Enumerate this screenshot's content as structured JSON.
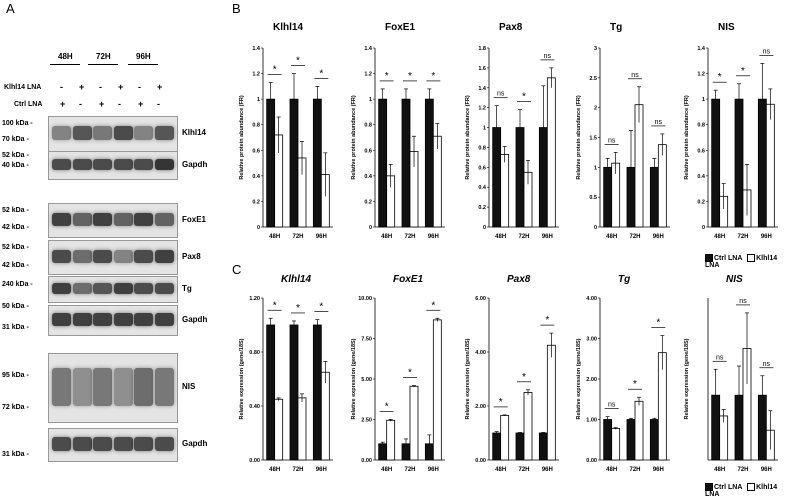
{
  "panel_letters": [
    "A",
    "B",
    "C"
  ],
  "westerns": {
    "timepoints": [
      "48H",
      "72H",
      "96H"
    ],
    "row_labels": [
      "Klhl14 LNA",
      "Ctrl LNA"
    ],
    "klhl14_lna_signs": [
      "-",
      "+",
      "-",
      "+",
      "-",
      "+"
    ],
    "ctrl_lna_signs": [
      "+",
      "-",
      "+",
      "-",
      "+",
      "-"
    ],
    "blots": [
      {
        "protein": "Klhl14",
        "markers": [
          "100 kDa -",
          "70 kDa -"
        ],
        "intensity": [
          0.55,
          0.75,
          0.6,
          0.8,
          0.55,
          0.75
        ]
      },
      {
        "protein": "Gapdh",
        "markers": [
          "52 kDa -",
          "40 kDa -"
        ],
        "intensity": [
          0.8,
          0.8,
          0.8,
          0.8,
          0.8,
          0.9
        ]
      },
      {
        "protein": "FoxE1",
        "markers": [
          "52 kDa -",
          "42 kDa -"
        ],
        "intensity": [
          0.85,
          0.7,
          0.85,
          0.7,
          0.85,
          0.7
        ]
      },
      {
        "protein": "Pax8",
        "markers": [
          "52 kDa -",
          "42 kDa -"
        ],
        "intensity": [
          0.8,
          0.65,
          0.8,
          0.55,
          0.8,
          0.85
        ]
      },
      {
        "protein": "Tg",
        "markers": [
          "240 kDa -"
        ],
        "intensity": [
          0.85,
          0.65,
          0.75,
          0.85,
          0.8,
          0.8
        ]
      },
      {
        "protein": "Gapdh",
        "markers": [
          "50 kDa -",
          "31 kDa -"
        ],
        "intensity": [
          0.85,
          0.85,
          0.85,
          0.85,
          0.85,
          0.85
        ]
      },
      {
        "protein": "NIS",
        "markers": [
          "95 kDa -",
          "72 kDa -"
        ],
        "intensity": [
          0.6,
          0.5,
          0.6,
          0.5,
          0.65,
          0.6
        ]
      },
      {
        "protein": "Gapdh",
        "markers": [
          "31 kDa -"
        ],
        "intensity": [
          0.8,
          0.8,
          0.8,
          0.8,
          0.8,
          0.8
        ]
      }
    ]
  },
  "legend": {
    "ctrl": "Ctrl LNA",
    "klhl14": "Klhl14 LNA"
  },
  "chart_data": [
    {
      "type": "bar",
      "panel": "B",
      "title": "Klhl14",
      "ylabel": "Relative protein abundance (FR)",
      "categories": [
        "48H",
        "72H",
        "96H"
      ],
      "ylim": [
        0,
        1.4
      ],
      "yticks": [
        "0",
        "0.2",
        "0.4",
        "0.6",
        "0.8",
        "1",
        "1.2",
        "1.4"
      ],
      "series": [
        {
          "name": "Ctrl LNA",
          "values": [
            1.0,
            1.0,
            1.0
          ],
          "errors": [
            0.13,
            0.2,
            0.1
          ]
        },
        {
          "name": "Klhl14 LNA",
          "values": [
            0.72,
            0.54,
            0.41
          ],
          "errors": [
            0.14,
            0.13,
            0.17
          ]
        }
      ],
      "annotations": [
        "*",
        "*",
        "*"
      ]
    },
    {
      "type": "bar",
      "panel": "B",
      "title": "FoxE1",
      "ylabel": "Relative protein abundance (FR)",
      "categories": [
        "48H",
        "72H",
        "96H"
      ],
      "ylim": [
        0,
        1.4
      ],
      "yticks": [
        "0",
        "0.2",
        "0.4",
        "0.6",
        "0.8",
        "1",
        "1.2",
        "1.4"
      ],
      "series": [
        {
          "name": "Ctrl LNA",
          "values": [
            1.0,
            1.0,
            1.0
          ],
          "errors": [
            0.08,
            0.08,
            0.08
          ]
        },
        {
          "name": "Klhl14 LNA",
          "values": [
            0.4,
            0.59,
            0.71
          ],
          "errors": [
            0.09,
            0.12,
            0.1
          ]
        }
      ],
      "annotations": [
        "*",
        "*",
        "*"
      ]
    },
    {
      "type": "bar",
      "panel": "B",
      "title": "Pax8",
      "ylabel": "Relative protein abundance (FR)",
      "categories": [
        "48H",
        "72H",
        "96H"
      ],
      "ylim": [
        0,
        1.8
      ],
      "yticks": [
        "0",
        "0.2",
        "0.4",
        "0.6",
        "0.8",
        "1",
        "1.2",
        "1.4",
        "1.6",
        "1.8"
      ],
      "series": [
        {
          "name": "Ctrl LNA",
          "values": [
            1.0,
            1.0,
            1.0
          ],
          "errors": [
            0.22,
            0.18,
            0.42
          ]
        },
        {
          "name": "Klhl14 LNA",
          "values": [
            0.73,
            0.55,
            1.5
          ],
          "errors": [
            0.08,
            0.12,
            0.1
          ]
        }
      ],
      "annotations": [
        "ns",
        "*",
        "ns"
      ]
    },
    {
      "type": "bar",
      "panel": "B",
      "title": "Tg",
      "ylabel": "Relative protein abundance (FR)",
      "categories": [
        "48H",
        "72H",
        "96H"
      ],
      "ylim": [
        0,
        3
      ],
      "yticks": [
        "0",
        "0.5",
        "1",
        "1.5",
        "2",
        "2.5",
        "3"
      ],
      "series": [
        {
          "name": "Ctrl LNA",
          "values": [
            1.0,
            1.0,
            1.0
          ],
          "errors": [
            0.15,
            0.62,
            0.15
          ]
        },
        {
          "name": "Klhl14 LNA",
          "values": [
            1.07,
            2.05,
            1.38
          ],
          "errors": [
            0.18,
            0.3,
            0.18
          ]
        }
      ],
      "annotations": [
        "ns",
        "ns",
        "ns"
      ]
    },
    {
      "type": "bar",
      "panel": "B",
      "title": "NIS",
      "ylabel": "Relative protein abundance (FR)",
      "categories": [
        "48H",
        "72H",
        "96H"
      ],
      "ylim": [
        0,
        1.4
      ],
      "yticks": [
        "0",
        "0.2",
        "0.4",
        "0.6",
        "0.8",
        "1",
        "1.2",
        "1.4"
      ],
      "series": [
        {
          "name": "Ctrl LNA",
          "values": [
            1.0,
            1.0,
            1.0
          ],
          "errors": [
            0.07,
            0.12,
            0.28
          ]
        },
        {
          "name": "Klhl14 LNA",
          "values": [
            0.24,
            0.29,
            0.96
          ],
          "errors": [
            0.1,
            0.2,
            0.12
          ]
        }
      ],
      "annotations": [
        "*",
        "*",
        "ns"
      ]
    },
    {
      "type": "bar",
      "panel": "C",
      "title": "Klhl14",
      "ylabel": "Relative expression (gene/18S)",
      "categories": [
        "48H",
        "72H",
        "96H"
      ],
      "ylim": [
        0,
        1.2
      ],
      "yticks": [
        "0.00",
        "0.40",
        "0.80",
        "1.20"
      ],
      "ytick_values": [
        0,
        0.4,
        0.8,
        1.2
      ],
      "series": [
        {
          "name": "Ctrl LNA",
          "values": [
            1.0,
            1.0,
            1.0
          ],
          "errors": [
            0.05,
            0.03,
            0.04
          ]
        },
        {
          "name": "Klhl14 LNA",
          "values": [
            0.45,
            0.46,
            0.65
          ],
          "errors": [
            0.01,
            0.03,
            0.08
          ]
        }
      ],
      "annotations": [
        "*",
        "*",
        "*"
      ]
    },
    {
      "type": "bar",
      "panel": "C",
      "title": "FoxE1",
      "ylabel": "Relative expression (gene/18S)",
      "categories": [
        "48H",
        "72H",
        "96H"
      ],
      "ylim": [
        0,
        10
      ],
      "yticks": [
        "0.00",
        "2.50",
        "5.00",
        "7.50",
        "10.00"
      ],
      "ytick_values": [
        0,
        2.5,
        5,
        7.5,
        10
      ],
      "series": [
        {
          "name": "Ctrl LNA",
          "values": [
            1.0,
            1.0,
            1.0
          ],
          "errors": [
            0.1,
            0.3,
            0.55
          ]
        },
        {
          "name": "Klhl14 LNA",
          "values": [
            2.45,
            4.55,
            8.65
          ],
          "errors": [
            0.06,
            0.05,
            0.1
          ]
        }
      ],
      "annotations": [
        "*",
        "*",
        "*"
      ]
    },
    {
      "type": "bar",
      "panel": "C",
      "title": "Pax8",
      "ylabel": "Relative expression (gene/18S)",
      "categories": [
        "48H",
        "72H",
        "96H"
      ],
      "ylim": [
        0,
        6
      ],
      "yticks": [
        "0.00",
        "2.00",
        "4.00",
        "6.00"
      ],
      "ytick_values": [
        0,
        2,
        4,
        6
      ],
      "series": [
        {
          "name": "Ctrl LNA",
          "values": [
            1.0,
            1.0,
            1.0
          ],
          "errors": [
            0.05,
            0.02,
            0.02
          ]
        },
        {
          "name": "Klhl14 LNA",
          "values": [
            1.65,
            2.5,
            4.25
          ],
          "errors": [
            0.02,
            0.1,
            0.45
          ]
        }
      ],
      "annotations": [
        "*",
        "*",
        "*"
      ]
    },
    {
      "type": "bar",
      "panel": "C",
      "title": "Tg",
      "ylabel": "Relative expression (gene/18S)",
      "categories": [
        "48H",
        "72H",
        "96H"
      ],
      "ylim": [
        0,
        4
      ],
      "yticks": [
        "0.00",
        "1.00",
        "2.00",
        "3.00",
        "4.00"
      ],
      "ytick_values": [
        0,
        1,
        2,
        3,
        4
      ],
      "series": [
        {
          "name": "Ctrl LNA",
          "values": [
            1.0,
            1.0,
            1.0
          ],
          "errors": [
            0.07,
            0.03,
            0.03
          ]
        },
        {
          "name": "Klhl14 LNA",
          "values": [
            0.78,
            1.45,
            2.65
          ],
          "errors": [
            0.02,
            0.1,
            0.42
          ]
        }
      ],
      "annotations": [
        "ns",
        "*",
        "*"
      ]
    },
    {
      "type": "bar",
      "panel": "C",
      "title": "NIS",
      "ylabel": "Relative expression (gene/18S)",
      "categories": [
        "48H",
        "72H",
        "96H"
      ],
      "ylim": [
        0,
        2.5
      ],
      "yticks": [],
      "series": [
        {
          "name": "Ctrl LNA",
          "values": [
            1.0,
            1.0,
            1.0
          ],
          "errors": [
            0.4,
            0.45,
            0.3
          ]
        },
        {
          "name": "Klhl14 LNA",
          "values": [
            0.68,
            1.72,
            0.46
          ],
          "errors": [
            0.1,
            0.55,
            0.3
          ]
        }
      ],
      "annotations": [
        "ns",
        "ns",
        "ns"
      ]
    }
  ]
}
